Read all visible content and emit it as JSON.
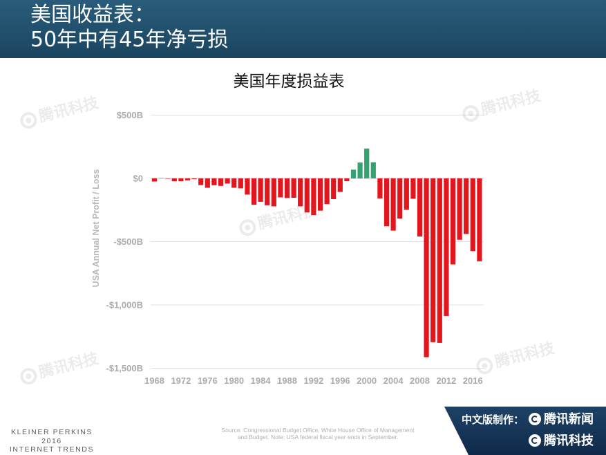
{
  "slide": {
    "title_line1": "美国收益表：",
    "title_line2": "50年中有45年净亏损"
  },
  "chart_data": {
    "type": "bar",
    "title": "美国年度损益表",
    "xlabel": "",
    "ylabel": "USA Annual Net Profit / Loss",
    "ylim": [
      -1500,
      500
    ],
    "yticks": [
      {
        "value": 500,
        "label": "$500B"
      },
      {
        "value": 0,
        "label": "$0"
      },
      {
        "value": -500,
        "label": "-$500B"
      },
      {
        "value": -1000,
        "label": "-$1,000B"
      },
      {
        "value": -1500,
        "label": "-$1,500B"
      }
    ],
    "xticks": [
      "1968",
      "1972",
      "1976",
      "1980",
      "1984",
      "1988",
      "1992",
      "1996",
      "2000",
      "2004",
      "2008",
      "2012",
      "2016"
    ],
    "x": [
      1968,
      1969,
      1970,
      1971,
      1972,
      1973,
      1974,
      1975,
      1976,
      1977,
      1978,
      1979,
      1980,
      1981,
      1982,
      1983,
      1984,
      1985,
      1986,
      1987,
      1988,
      1989,
      1990,
      1991,
      1992,
      1993,
      1994,
      1995,
      1996,
      1997,
      1998,
      1999,
      2000,
      2001,
      2002,
      2003,
      2004,
      2005,
      2006,
      2007,
      2008,
      2009,
      2010,
      2011,
      2012,
      2013,
      2014,
      2015,
      2016,
      2017
    ],
    "values": [
      -25,
      3,
      -3,
      -23,
      -23,
      -15,
      -6,
      -53,
      -74,
      -54,
      -59,
      -41,
      -74,
      -79,
      -128,
      -208,
      -185,
      -212,
      -221,
      -150,
      -155,
      -153,
      -221,
      -269,
      -290,
      -255,
      -203,
      -164,
      -107,
      -22,
      69,
      126,
      236,
      128,
      -158,
      -378,
      -413,
      -318,
      -248,
      -161,
      -459,
      -1413,
      -1294,
      -1300,
      -1087,
      -680,
      -485,
      -439,
      -575,
      -655
    ],
    "bar_colors": {
      "loss": "#e3161d",
      "surplus": "#35a271"
    },
    "grid": true,
    "legend": "none"
  },
  "watermark": {
    "text": "腾讯科技"
  },
  "footer": {
    "kpcb": [
      "KLEINER PERKINS",
      "2016",
      "INTERNET TRENDS"
    ],
    "source_lines": [
      "Source: Congressional Budget Office, White House Office of Management",
      "and Budget.  Note: USA federal fiscal year ends in September."
    ],
    "credit_label": "中文版制作：",
    "credit_brands": [
      {
        "icon": "tencent-logo-icon",
        "name": "腾讯新闻"
      },
      {
        "icon": "tencent-logo-icon",
        "name": "腾讯科技"
      }
    ]
  }
}
